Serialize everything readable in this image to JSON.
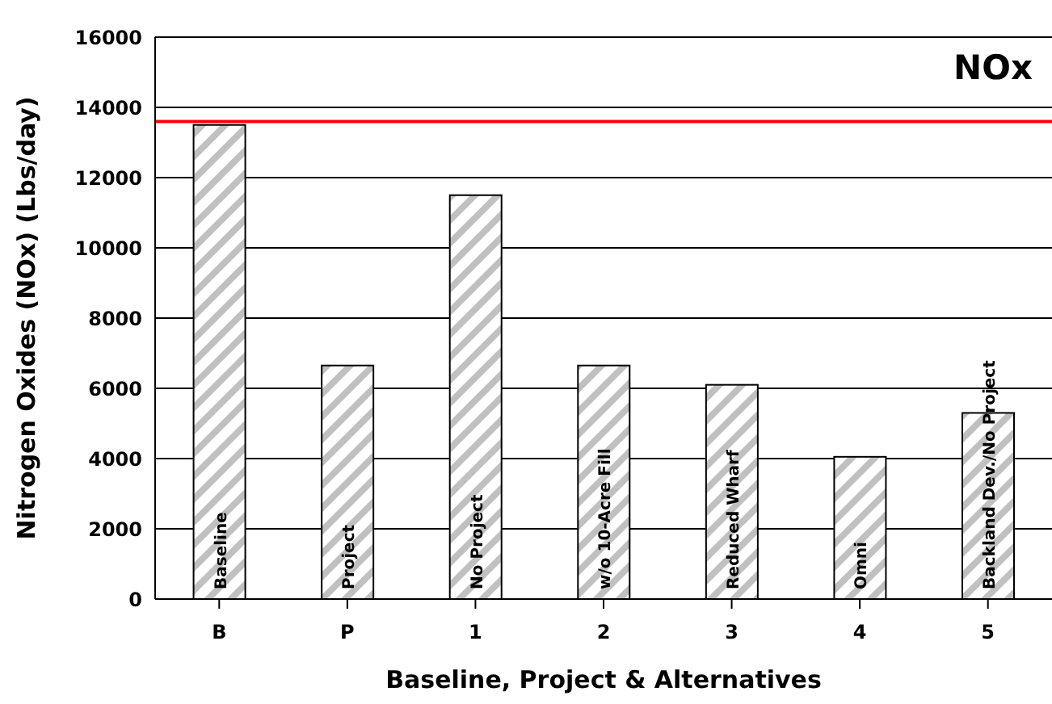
{
  "chart_data": {
    "type": "bar",
    "title": "NOx",
    "xlabel": "Baseline, Project & Alternatives",
    "ylabel": "Nitrogen Oxides (NOx) (Lbs/day)",
    "categories": [
      "B",
      "P",
      "1",
      "2",
      "3",
      "4",
      "5"
    ],
    "values": [
      13500,
      6650,
      11500,
      6650,
      6100,
      4050,
      5300
    ],
    "color": "#c0c0c0",
    "ylim": [
      0,
      16000
    ],
    "yticks": [
      0,
      2000,
      4000,
      6000,
      8000,
      10000,
      12000,
      14000,
      16000
    ],
    "grid": "y",
    "ref_lines": [
      {
        "axis": "y",
        "value": 13600,
        "color": "#ff0000"
      }
    ],
    "annotations": [
      "Baseline",
      "Project",
      "No Project",
      "w/o 10-Acre Fill",
      "Reduced Wharf",
      "Omni",
      "Backland Dev./No Project"
    ]
  }
}
